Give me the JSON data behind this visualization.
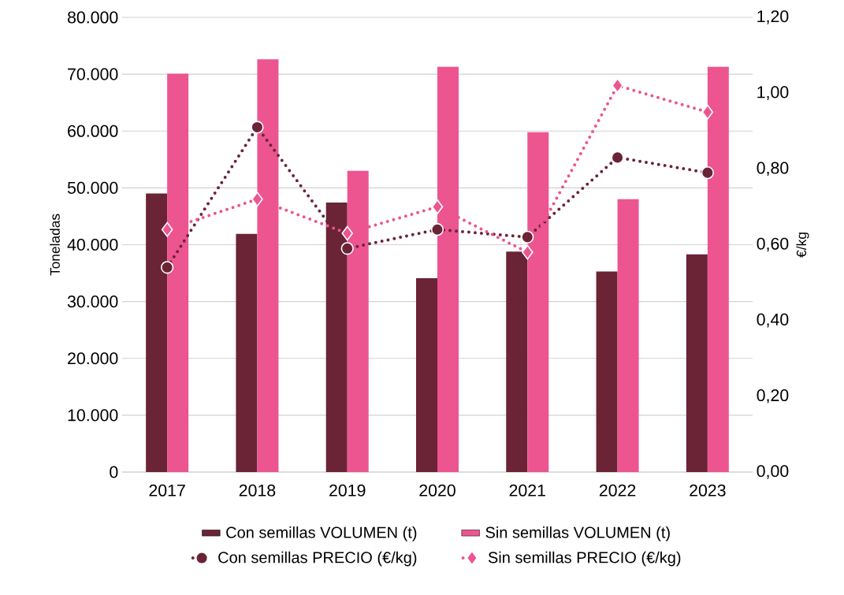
{
  "chart_data": {
    "type": "bar",
    "ylabel": "Toneladas",
    "y2label": "€/kg",
    "categories": [
      "2017",
      "2018",
      "2019",
      "2020",
      "2021",
      "2022",
      "2023"
    ],
    "series": [
      {
        "name": "Con semillas VOLUMEN (t)",
        "color": "#6b2336",
        "values": [
          49000,
          41900,
          47400,
          34100,
          38800,
          35300,
          38300
        ]
      },
      {
        "name": "Sin semillas VOLUMEN (t)",
        "color": "#ec5590",
        "values": [
          70100,
          72600,
          53000,
          71300,
          59800,
          48000,
          71300
        ]
      },
      {
        "name": "Con semillas PRECIO (€/kg)",
        "type": "line",
        "axis": "y2",
        "color": "#6b2336",
        "marker": "circle",
        "line_style": "dotted",
        "values": [
          0.54,
          0.91,
          0.59,
          0.64,
          0.62,
          0.83,
          0.79
        ]
      },
      {
        "name": "Sin semillas PRECIO (€/kg)",
        "type": "line",
        "axis": "y2",
        "color": "#ec5590",
        "marker": "diamond",
        "line_style": "dotted",
        "values": [
          0.64,
          0.72,
          0.63,
          0.7,
          0.58,
          1.02,
          0.95
        ]
      }
    ],
    "ylim": [
      0,
      80000
    ],
    "yticks": [
      0,
      {
        "value": 10000,
        "label": "10.000"
      },
      {
        "value": 20000,
        "label": "20.000"
      },
      {
        "value": 30000,
        "label": "30.000"
      },
      {
        "value": 40000,
        "label": "40.000"
      },
      {
        "value": 50000,
        "label": "50.000"
      },
      {
        "value": 60000,
        "label": "60.000"
      },
      {
        "value": 70000,
        "label": "70.000"
      },
      {
        "value": 80000,
        "label": "80.000"
      }
    ],
    "y2lim": [
      0,
      1.2
    ],
    "y2ticks": [
      {
        "value": 0,
        "label": "0,00"
      },
      {
        "value": 0.2,
        "label": "0,20"
      },
      {
        "value": 0.4,
        "label": "0,40"
      },
      {
        "value": 0.6,
        "label": "0,60"
      },
      {
        "value": 0.8,
        "label": "0,80"
      },
      {
        "value": 1.0,
        "label": "1,00"
      },
      {
        "value": 1.2,
        "label": "1,20"
      }
    ],
    "grid": "y",
    "legend": "bottom"
  }
}
